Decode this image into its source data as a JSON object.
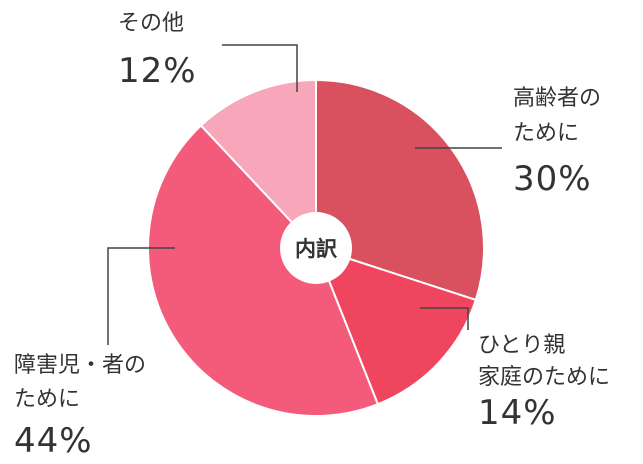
{
  "chart_data": {
    "type": "pie",
    "center_label": "内訳",
    "categories": [
      [
        "高齢者の",
        "ために"
      ],
      [
        "ひとり親",
        "家庭のために"
      ],
      [
        "障害児・者の",
        "ために"
      ],
      [
        "その他"
      ]
    ],
    "values": [
      30,
      14,
      44,
      12
    ],
    "value_labels": [
      "30%",
      "14%",
      "44%",
      "12%"
    ],
    "colors": [
      "#d9505e",
      "#f0455e",
      "#f45b7b",
      "#f8a7ba"
    ]
  }
}
